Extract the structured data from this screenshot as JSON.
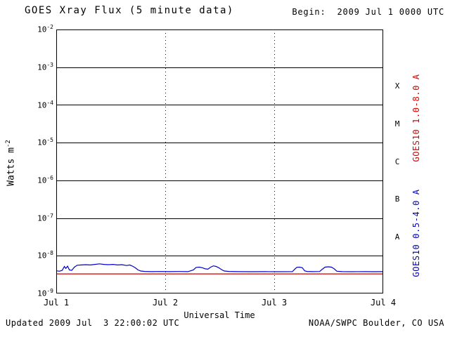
{
  "header": {
    "title": "GOES Xray Flux (5 minute data)",
    "begin_label": "Begin:  2009 Jul 1 0000 UTC"
  },
  "footer": {
    "updated": "Updated 2009 Jul  3 22:00:02 UTC",
    "source": "NOAA/SWPC Boulder, CO USA"
  },
  "yaxis": {
    "label_base": "Watts m",
    "label_exp": "-2",
    "ticks": [
      {
        "base": "10",
        "exp": "-2"
      },
      {
        "base": "10",
        "exp": "-3"
      },
      {
        "base": "10",
        "exp": "-4"
      },
      {
        "base": "10",
        "exp": "-5"
      },
      {
        "base": "10",
        "exp": "-6"
      },
      {
        "base": "10",
        "exp": "-7"
      },
      {
        "base": "10",
        "exp": "-8"
      },
      {
        "base": "10",
        "exp": "-9"
      }
    ]
  },
  "xaxis": {
    "label": "Universal Time",
    "ticks": [
      "Jul 1",
      "Jul 2",
      "Jul 3",
      "Jul 4"
    ]
  },
  "right_axis": {
    "classes": [
      "X",
      "M",
      "C",
      "B",
      "A"
    ],
    "series_labels": [
      {
        "text": "GOES10 1.0-8.0 A",
        "color": "#dd0000"
      },
      {
        "text": "GOES10 0.5-4.0 A",
        "color": "#0000cc"
      }
    ]
  },
  "chart_data": {
    "type": "line",
    "title": "GOES Xray Flux (5 minute data)",
    "xlabel": "Universal Time",
    "ylabel": "Watts m^-2",
    "yscale": "log",
    "grid": "horizontal solid per decade, vertical dotted per day",
    "legend_position": "right-rotated",
    "x_unit": "hours since 2009-07-01 00:00 UTC",
    "xlim": [
      0,
      72
    ],
    "ylim": [
      1e-09,
      0.01
    ],
    "x_ticks_hours": [
      0,
      24,
      48,
      72
    ],
    "x_tick_labels": [
      "Jul 1",
      "Jul 2",
      "Jul 3",
      "Jul 4"
    ],
    "flare_class_bands": {
      "A": [
        1e-08,
        1e-07
      ],
      "B": [
        1e-07,
        1e-06
      ],
      "C": [
        1e-06,
        1e-05
      ],
      "M": [
        1e-05,
        0.0001
      ],
      "X": [
        0.0001,
        0.001
      ]
    },
    "series": [
      {
        "name": "GOES10 1.0-8.0 A",
        "color": "#cc0000",
        "points": [
          [
            0,
            3.3e-09
          ],
          [
            24,
            3.3e-09
          ],
          [
            48,
            3.3e-09
          ],
          [
            72,
            3.3e-09
          ]
        ]
      },
      {
        "name": "GOES10 0.5-4.0 A",
        "color": "#0000cc",
        "points": [
          [
            0,
            4e-09
          ],
          [
            0.7,
            3.9e-09
          ],
          [
            1.3,
            4.1e-09
          ],
          [
            1.8,
            5.2e-09
          ],
          [
            2.1,
            4.6e-09
          ],
          [
            2.5,
            5.3e-09
          ],
          [
            2.9,
            4.2e-09
          ],
          [
            3.4,
            4.1e-09
          ],
          [
            4.0,
            5e-09
          ],
          [
            4.6,
            5.6e-09
          ],
          [
            5.5,
            5.7e-09
          ],
          [
            6.5,
            5.8e-09
          ],
          [
            7.5,
            5.7e-09
          ],
          [
            8.5,
            5.9e-09
          ],
          [
            9.5,
            6.1e-09
          ],
          [
            10.5,
            5.9e-09
          ],
          [
            11.5,
            5.8e-09
          ],
          [
            12.5,
            5.9e-09
          ],
          [
            13.5,
            5.7e-09
          ],
          [
            14.5,
            5.8e-09
          ],
          [
            15.5,
            5.5e-09
          ],
          [
            16.2,
            5.7e-09
          ],
          [
            16.8,
            5.3e-09
          ],
          [
            17.4,
            4.8e-09
          ],
          [
            18.0,
            4.2e-09
          ],
          [
            18.6,
            3.95e-09
          ],
          [
            19.5,
            3.85e-09
          ],
          [
            21,
            3.8e-09
          ],
          [
            23,
            3.82e-09
          ],
          [
            25,
            3.8e-09
          ],
          [
            27,
            3.83e-09
          ],
          [
            29,
            3.8e-09
          ],
          [
            30.2,
            4.2e-09
          ],
          [
            30.8,
            4.9e-09
          ],
          [
            31.5,
            5e-09
          ],
          [
            32.2,
            4.8e-09
          ],
          [
            32.8,
            4.5e-09
          ],
          [
            33.4,
            4.4e-09
          ],
          [
            34.0,
            5e-09
          ],
          [
            34.6,
            5.4e-09
          ],
          [
            35.2,
            5.2e-09
          ],
          [
            35.8,
            4.8e-09
          ],
          [
            36.4,
            4.3e-09
          ],
          [
            37.0,
            3.95e-09
          ],
          [
            38,
            3.85e-09
          ],
          [
            40,
            3.8e-09
          ],
          [
            43,
            3.78e-09
          ],
          [
            46,
            3.8e-09
          ],
          [
            49,
            3.78e-09
          ],
          [
            52,
            3.8e-09
          ],
          [
            52.6,
            4.5e-09
          ],
          [
            53.0,
            4.95e-09
          ],
          [
            53.6,
            5e-09
          ],
          [
            54.2,
            4.8e-09
          ],
          [
            54.7,
            4e-09
          ],
          [
            55.2,
            3.85e-09
          ],
          [
            56.5,
            3.8e-09
          ],
          [
            58.0,
            3.82e-09
          ],
          [
            58.6,
            4.4e-09
          ],
          [
            59.2,
            5e-09
          ],
          [
            59.9,
            5.1e-09
          ],
          [
            60.6,
            5e-09
          ],
          [
            61.2,
            4.5e-09
          ],
          [
            61.8,
            3.9e-09
          ],
          [
            63,
            3.8e-09
          ],
          [
            65,
            3.78e-09
          ],
          [
            68,
            3.8e-09
          ],
          [
            70,
            3.78e-09
          ],
          [
            72,
            3.8e-09
          ]
        ]
      }
    ]
  }
}
